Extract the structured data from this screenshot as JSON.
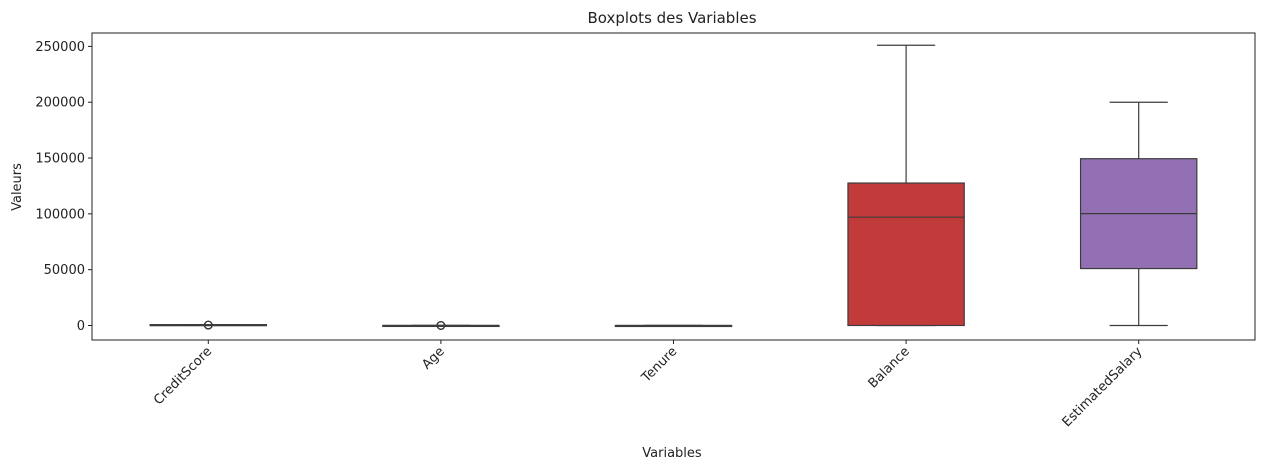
{
  "chart_data": {
    "type": "boxplot",
    "title": "Boxplots des Variables",
    "xlabel": "Variables",
    "ylabel": "Valeurs",
    "ylim": [
      -13000,
      262000
    ],
    "yticks": [
      0,
      50000,
      100000,
      150000,
      200000,
      250000
    ],
    "ytick_labels": [
      "0",
      "50000",
      "100000",
      "150000",
      "200000",
      "250000"
    ],
    "grid": false,
    "categories": [
      "CreditScore",
      "Age",
      "Tenure",
      "Balance",
      "EstimatedSalary"
    ],
    "boxes": [
      {
        "name": "CreditScore",
        "color": "#1f77b4",
        "min": 383,
        "q1": 584,
        "median": 652,
        "q3": 718,
        "max": 850,
        "outliers": [
          350,
          358,
          359,
          363,
          365,
          367,
          373,
          376,
          382
        ]
      },
      {
        "name": "Age",
        "color": "#ff7f0e",
        "min": 18,
        "q1": 32,
        "median": 37,
        "q3": 44,
        "max": 62,
        "outliers": [
          63,
          65,
          68,
          70,
          72,
          75,
          78,
          80,
          84,
          88,
          92
        ]
      },
      {
        "name": "Tenure",
        "color": "#2ca02c",
        "min": 0,
        "q1": 3,
        "median": 5,
        "q3": 7,
        "max": 10,
        "outliers": []
      },
      {
        "name": "Balance",
        "color": "#c23b3b",
        "min": 0,
        "q1": 0,
        "median": 97000,
        "q3": 127600,
        "max": 251000,
        "outliers": []
      },
      {
        "name": "EstimatedSalary",
        "color": "#9370b3",
        "min": 11,
        "q1": 51000,
        "median": 100200,
        "q3": 149400,
        "max": 199990,
        "outliers": []
      }
    ]
  }
}
